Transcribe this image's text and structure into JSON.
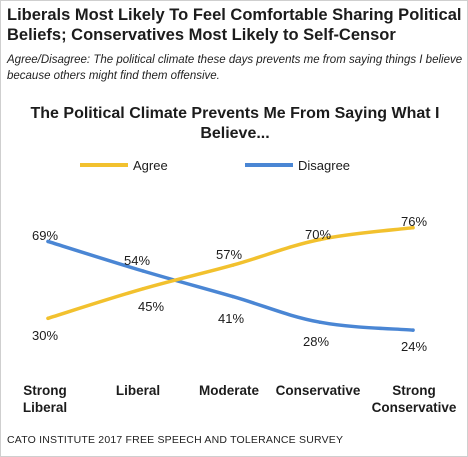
{
  "headline": "Liberals Most Likely To Feel Comfortable Sharing Political Beliefs; Conservatives Most Likely to Self-Censor",
  "subtitle_lead": "Agree/Disagree:",
  "subtitle_text": "The political climate these days prevents me from saying things I believe because others might find them offensive.",
  "source": "CATO INSTITUTE 2017 FREE SPEECH AND TOLERANCE SURVEY",
  "colors": {
    "agree": "#F2C12E",
    "disagree": "#4A86D4"
  },
  "chart_data": {
    "type": "line",
    "title": "The Political Climate Prevents Me From Saying What I Believe...",
    "categories": [
      "Strong Liberal",
      "Liberal",
      "Moderate",
      "Conservative",
      "Strong Conservative"
    ],
    "series": [
      {
        "name": "Agree",
        "values": [
          30,
          45,
          57,
          70,
          76
        ]
      },
      {
        "name": "Disagree",
        "values": [
          69,
          54,
          41,
          28,
          24
        ]
      }
    ],
    "value_suffix": "%",
    "ylim": [
      0,
      100
    ],
    "grid": false,
    "legend": "top"
  }
}
